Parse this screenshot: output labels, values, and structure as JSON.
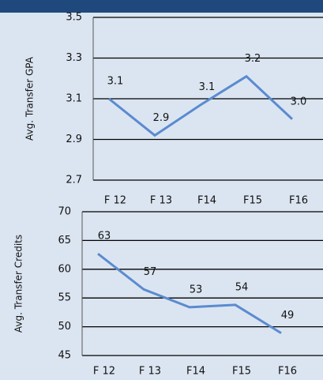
{
  "chart_data": [
    {
      "type": "line",
      "y_label": "Avg. Transfer GPA",
      "categories": [
        "F 12",
        "F 13",
        "F14",
        "F15",
        "F16"
      ],
      "series": [
        {
          "name": "GPA",
          "color": "#5b8bd0",
          "values": [
            3.1,
            2.92,
            3.07,
            3.21,
            3.0
          ],
          "value_labels": [
            "3.1",
            "2.9",
            "3.1",
            "3.2",
            "3.0"
          ]
        }
      ],
      "ylim": [
        2.7,
        3.5
      ],
      "yticks": [
        {
          "value": 3.5,
          "label": "3.5"
        },
        {
          "value": 3.3,
          "label": "3.3"
        },
        {
          "value": 3.1,
          "label": "3.1"
        },
        {
          "value": 2.9,
          "label": "2.9"
        },
        {
          "value": 2.7,
          "label": "2.7"
        }
      ],
      "grid": true
    },
    {
      "type": "line",
      "y_label": "Avg. Transfer Credits",
      "categories": [
        "F 12",
        "F 13",
        "F14",
        "F15",
        "F16"
      ],
      "series": [
        {
          "name": "Credits",
          "color": "#5b8bd0",
          "values": [
            62.7,
            56.5,
            53.4,
            53.8,
            48.9
          ],
          "value_labels": [
            "63",
            "57",
            "53",
            "54",
            "49"
          ]
        }
      ],
      "ylim": [
        45,
        70
      ],
      "yticks": [
        70,
        65,
        60,
        55,
        50,
        45
      ],
      "grid": true
    }
  ]
}
